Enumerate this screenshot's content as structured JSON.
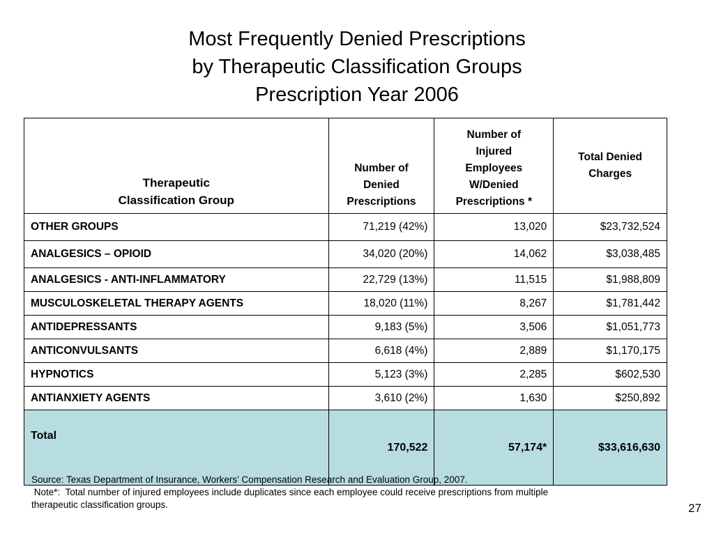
{
  "title": {
    "line1": "Most Frequently Denied Prescriptions",
    "line2": "by Therapeutic Classification Groups",
    "line3": "Prescription Year 2006"
  },
  "table": {
    "headers": {
      "group": [
        "Therapeutic",
        "Classification Group"
      ],
      "denied_prescriptions": [
        "Number of",
        "Denied",
        "Prescriptions"
      ],
      "injured_employees": [
        "Number of",
        "Injured",
        "Employees",
        "W/Denied",
        "Prescriptions *"
      ],
      "charges": [
        "Total Denied",
        "Charges"
      ]
    },
    "rows": [
      {
        "group": "OTHER GROUPS",
        "prescriptions": "71,219 (42%)",
        "employees": "13,020",
        "charges": "$23,732,524"
      },
      {
        "group": "ANALGESICS – OPIOID",
        "prescriptions": "34,020 (20%)",
        "employees": "14,062",
        "charges": "$3,038,485"
      },
      {
        "group": "ANALGESICS - ANTI-INFLAMMATORY",
        "prescriptions": "22,729 (13%)",
        "employees": "11,515",
        "charges": "$1,988,809"
      },
      {
        "group": "MUSCULOSKELETAL THERAPY AGENTS",
        "prescriptions": "18,020 (11%)",
        "employees": "8,267",
        "charges": "$1,781,442"
      },
      {
        "group": "ANTIDEPRESSANTS",
        "prescriptions": "9,183 (5%)",
        "employees": "3,506",
        "charges": "$1,051,773"
      },
      {
        "group": "ANTICONVULSANTS",
        "prescriptions": "6,618 (4%)",
        "employees": "2,889",
        "charges": "$1,170,175"
      },
      {
        "group": "HYPNOTICS",
        "prescriptions": "5,123 (3%)",
        "employees": "2,285",
        "charges": "$602,530"
      },
      {
        "group": "ANTIANXIETY AGENTS",
        "prescriptions": "3,610 (2%)",
        "employees": "1,630",
        "charges": "$250,892"
      }
    ],
    "total": {
      "label": "Total",
      "prescriptions": "170,522",
      "employees": "57,174*",
      "charges": "$33,616,630"
    },
    "total_row_color": "#b8dde1"
  },
  "footnote": {
    "source": "Source: Texas Department of Insurance, Workers’ Compensation Research and Evaluation Group, 2007.",
    "note_line1": " Note*:  Total number of injured employees include duplicates since each employee could receive prescriptions from multiple",
    "note_line2": "therapeutic classification groups."
  },
  "page_number": "27"
}
